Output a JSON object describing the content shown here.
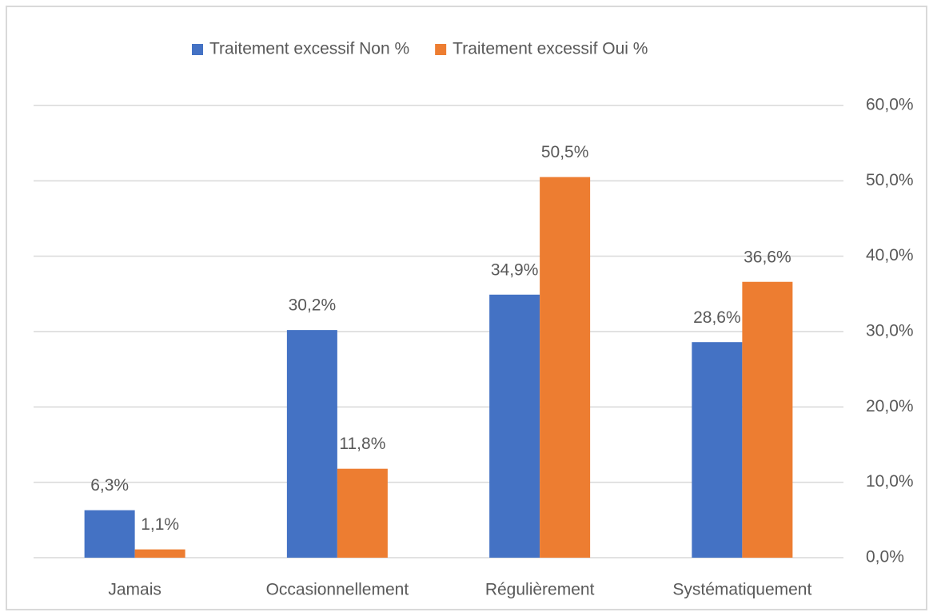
{
  "chart_data": {
    "type": "bar",
    "categories": [
      "Jamais",
      "Occasionnellement",
      "Régulièrement",
      "Systématiquement"
    ],
    "series": [
      {
        "name": "Traitement excessif Non %",
        "color": "#4472c4",
        "values": [
          6.3,
          30.2,
          34.9,
          28.6
        ],
        "value_labels": [
          "6,3%",
          "30,2%",
          "34,9%",
          "28,6%"
        ]
      },
      {
        "name": "Traitement excessif Oui %",
        "color": "#ed7d31",
        "values": [
          1.1,
          11.8,
          50.5,
          36.6
        ],
        "value_labels": [
          "1,1%",
          "11,8%",
          "50,5%",
          "36,6%"
        ]
      }
    ],
    "ylim": [
      0,
      60
    ],
    "yticks": [
      {
        "value": 0,
        "label": "0,0%"
      },
      {
        "value": 10,
        "label": "10,0%"
      },
      {
        "value": 20,
        "label": "20,0%"
      },
      {
        "value": 30,
        "label": "30,0%"
      },
      {
        "value": 40,
        "label": "40,0%"
      },
      {
        "value": 50,
        "label": "50,0%"
      },
      {
        "value": 60,
        "label": "60,0%"
      }
    ],
    "y_axis_side": "right",
    "grid": true,
    "legend": "top"
  }
}
